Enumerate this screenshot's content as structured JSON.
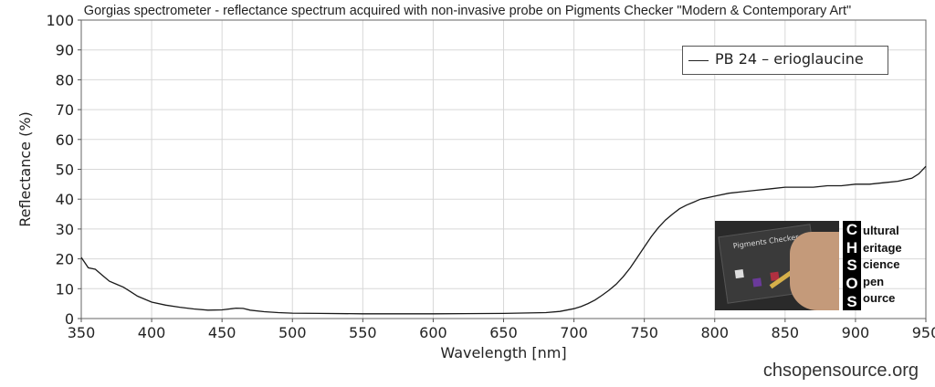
{
  "title": "Gorgias spectrometer - reflectance spectrum acquired with non-invasive probe on Pigments Checker \"Modern & Contemporary Art\"",
  "website": "chsopensource.org",
  "logo": {
    "photo_label": "Pigments Checker",
    "letters": [
      "C",
      "H",
      "S",
      "O",
      "S"
    ],
    "words": [
      "ultural",
      "eritage",
      "cience",
      "pen",
      "ource"
    ]
  },
  "chart_data": {
    "type": "line",
    "title": "Gorgias spectrometer - reflectance spectrum acquired with non-invasive probe on Pigments Checker \"Modern & Contemporary Art\"",
    "xlabel": "Wavelength [nm]",
    "ylabel": "Reflectance (%)",
    "xlim": [
      350,
      950
    ],
    "ylim": [
      0,
      100
    ],
    "xticks": [
      350,
      400,
      450,
      500,
      550,
      600,
      650,
      700,
      750,
      800,
      850,
      900,
      950
    ],
    "yticks": [
      0,
      10,
      20,
      30,
      40,
      50,
      60,
      70,
      80,
      90,
      100
    ],
    "grid": true,
    "legend_position": "top-right",
    "series": [
      {
        "name": "PB 24 – erioglaucine",
        "color": "#1a1a1a",
        "x": [
          350,
          355,
          360,
          365,
          370,
          375,
          380,
          385,
          390,
          400,
          410,
          420,
          430,
          440,
          450,
          460,
          465,
          470,
          480,
          490,
          500,
          520,
          550,
          600,
          650,
          680,
          690,
          700,
          705,
          710,
          715,
          720,
          725,
          730,
          735,
          740,
          745,
          750,
          755,
          760,
          765,
          770,
          775,
          780,
          785,
          790,
          800,
          810,
          820,
          830,
          840,
          850,
          860,
          870,
          880,
          890,
          900,
          910,
          920,
          930,
          940,
          945,
          950
        ],
        "y": [
          20.5,
          17,
          16.5,
          14.5,
          12.5,
          11.5,
          10.5,
          9,
          7.5,
          5.5,
          4.5,
          3.8,
          3.2,
          2.8,
          2.9,
          3.5,
          3.4,
          2.8,
          2.3,
          2.0,
          1.8,
          1.7,
          1.6,
          1.6,
          1.7,
          2.0,
          2.4,
          3.3,
          4.0,
          5.0,
          6.2,
          7.8,
          9.5,
          11.5,
          14.0,
          17.0,
          20.5,
          24.0,
          27.5,
          30.5,
          33.0,
          35.0,
          36.8,
          38.0,
          39.0,
          40.0,
          41.0,
          42.0,
          42.5,
          43.0,
          43.5,
          44.0,
          44.0,
          44.0,
          44.5,
          44.5,
          45.0,
          45.0,
          45.5,
          46.0,
          47.0,
          48.5,
          51.0
        ]
      }
    ]
  }
}
